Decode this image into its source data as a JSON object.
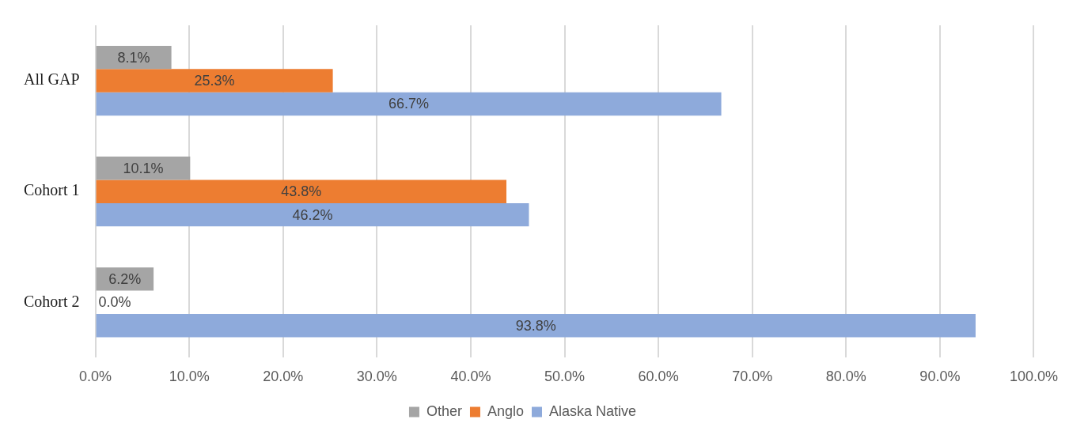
{
  "chart_data": {
    "type": "bar",
    "orientation": "horizontal",
    "categories": [
      "All GAP",
      "Cohort 1",
      "Cohort 2"
    ],
    "series": [
      {
        "name": "Other",
        "color": "#a5a5a5",
        "values": [
          8.1,
          10.1,
          6.2
        ],
        "value_labels": [
          "8.1%",
          "10.1%",
          "6.2%"
        ]
      },
      {
        "name": "Anglo",
        "color": "#ed7d31",
        "values": [
          25.3,
          43.8,
          0.0
        ],
        "value_labels": [
          "25.3%",
          "43.8%",
          "0.0%"
        ]
      },
      {
        "name": "Alaska Native",
        "color": "#8eaadb",
        "values": [
          66.7,
          46.2,
          93.8
        ],
        "value_labels": [
          "66.7%",
          "46.2%",
          "93.8%"
        ]
      }
    ],
    "xlim": [
      0,
      100
    ],
    "xticks": [
      {
        "value": 0,
        "label": "0.0%"
      },
      {
        "value": 10,
        "label": "10.0%"
      },
      {
        "value": 20,
        "label": "20.0%"
      },
      {
        "value": 30,
        "label": "30.0%"
      },
      {
        "value": 40,
        "label": "40.0%"
      },
      {
        "value": 50,
        "label": "50.0%"
      },
      {
        "value": 60,
        "label": "60.0%"
      },
      {
        "value": 70,
        "label": "70.0%"
      },
      {
        "value": 80,
        "label": "80.0%"
      },
      {
        "value": 90,
        "label": "90.0%"
      },
      {
        "value": 100,
        "label": "100.0%"
      }
    ],
    "grid": "x",
    "legend": "bottom"
  }
}
